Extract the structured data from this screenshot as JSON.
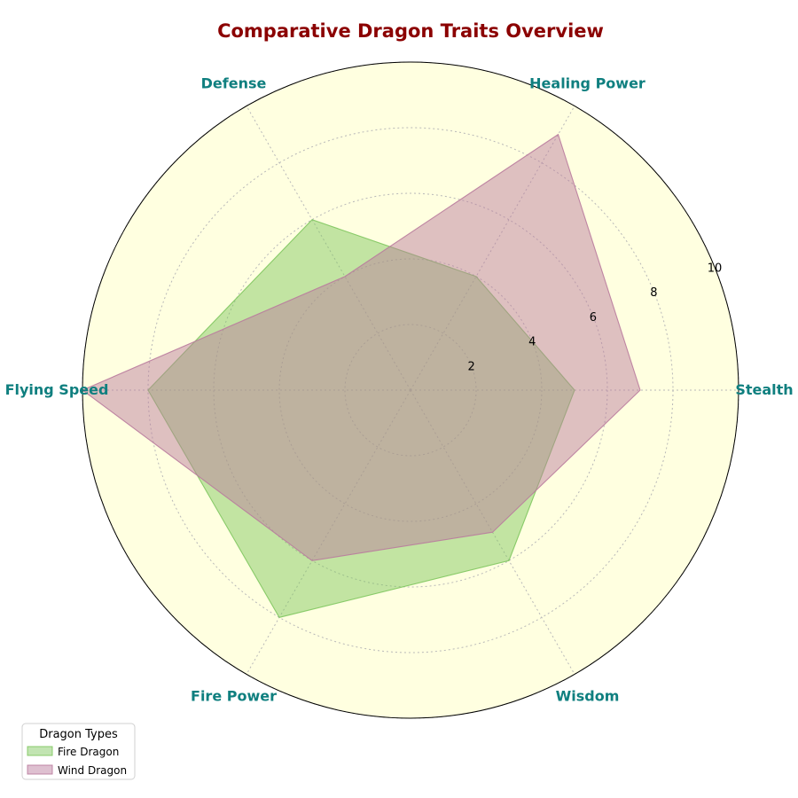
{
  "chart_data": {
    "type": "radar",
    "title": "Comparative Dragon Traits Overview",
    "axes": [
      "Stealth",
      "Healing Power",
      "Defense",
      "Flying Speed",
      "Fire Power",
      "Wisdom"
    ],
    "radial_ticks": [
      "2",
      "4",
      "6",
      "8",
      "10"
    ],
    "rlim": [
      0,
      10
    ],
    "grid": true,
    "legend": {
      "title": "Dragon Types",
      "placement": "bottom-left"
    },
    "series": [
      {
        "name": "Fire Dragon",
        "values": [
          5,
          4,
          6,
          8,
          8,
          6
        ],
        "color": "#7fc65f"
      },
      {
        "name": "Wind Dragon",
        "values": [
          7,
          9,
          4,
          10,
          6,
          5
        ],
        "color": "#b97b9d"
      }
    ],
    "colors": {
      "background": "#ffffe0",
      "title": "#8b0000",
      "axis_labels": "#0f7f7f"
    }
  }
}
